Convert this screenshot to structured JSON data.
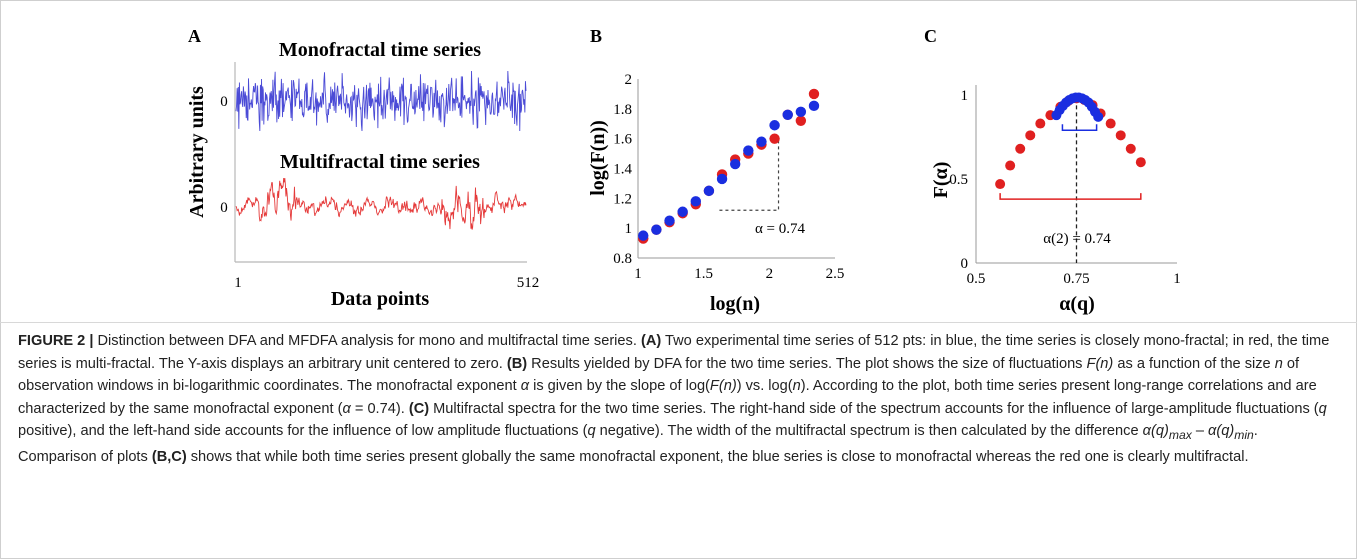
{
  "panels": {
    "A": {
      "letter": "A",
      "title_top": "Monofractal time series",
      "title_bottom": "Multifractal time series",
      "ylabel": "Arbitrary units",
      "xlabel": "Data points",
      "tick_zero_top": "0",
      "tick_zero_bottom": "0",
      "x_tick_start": "1",
      "x_tick_end": "512",
      "colors": {
        "mono": "#4b4bd6",
        "multi": "#e53a3a"
      }
    },
    "B": {
      "letter": "B",
      "xlabel": "log(n)",
      "ylabel": "log(F(n))",
      "annotation": "α = 0.74",
      "xticks": [
        "1",
        "1.5",
        "2",
        "2.5"
      ],
      "yticks": [
        "0.8",
        "1",
        "1.2",
        "1.4",
        "1.6",
        "1.8",
        "2"
      ]
    },
    "C": {
      "letter": "C",
      "xlabel": "α(q)",
      "ylabel": "F(α)",
      "annotation": "α(2) = 0.74",
      "xticks": [
        "0.5",
        "0.75",
        "1"
      ],
      "yticks": [
        "0",
        "0.5",
        "1"
      ]
    }
  },
  "chart_data": [
    {
      "type": "line",
      "panel": "A",
      "x_range": [
        1,
        512
      ],
      "series": [
        {
          "color": "#4b4bd6",
          "kind": "monofractal",
          "n_points": 512
        },
        {
          "color": "#e53a3a",
          "kind": "multifractal",
          "n_points": 512
        }
      ]
    },
    {
      "type": "scatter",
      "panel": "B",
      "xlim": [
        1,
        2.5
      ],
      "ylim": [
        0.8,
        2
      ],
      "series": [
        {
          "color": "#e02020",
          "x": [
            1.04,
            1.14,
            1.24,
            1.34,
            1.44,
            1.54,
            1.64,
            1.74,
            1.84,
            1.94,
            2.04,
            2.14,
            2.24,
            2.34
          ],
          "y": [
            0.93,
            0.99,
            1.04,
            1.1,
            1.16,
            1.25,
            1.36,
            1.46,
            1.5,
            1.56,
            1.6,
            1.76,
            1.72,
            1.9
          ]
        },
        {
          "color": "#1a2ee0",
          "x": [
            1.04,
            1.14,
            1.24,
            1.34,
            1.44,
            1.54,
            1.64,
            1.74,
            1.84,
            1.94,
            2.04,
            2.14,
            2.24,
            2.34
          ],
          "y": [
            0.95,
            0.99,
            1.05,
            1.11,
            1.18,
            1.25,
            1.33,
            1.43,
            1.52,
            1.58,
            1.69,
            1.76,
            1.78,
            1.82
          ]
        }
      ],
      "slope_guide": {
        "from": [
          1.62,
          1.12
        ],
        "corner": [
          2.07,
          1.12
        ],
        "to": [
          2.07,
          1.6
        ]
      }
    },
    {
      "type": "scatter",
      "panel": "C",
      "xlim": [
        0.5,
        1
      ],
      "ylim": [
        0,
        1.1
      ],
      "series": [
        {
          "color": "#e02020",
          "x": [
            0.56,
            0.585,
            0.61,
            0.635,
            0.66,
            0.685,
            0.71,
            0.73,
            0.75,
            0.77,
            0.79,
            0.81,
            0.835,
            0.86,
            0.885,
            0.91
          ],
          "y": [
            0.47,
            0.58,
            0.68,
            0.76,
            0.83,
            0.88,
            0.93,
            0.965,
            0.98,
            0.97,
            0.94,
            0.89,
            0.83,
            0.76,
            0.68,
            0.6
          ]
        },
        {
          "color": "#1a2ee0",
          "x": [
            0.7,
            0.708,
            0.716,
            0.724,
            0.732,
            0.74,
            0.748,
            0.756,
            0.764,
            0.772,
            0.78,
            0.788,
            0.796,
            0.804
          ],
          "y": [
            0.88,
            0.91,
            0.935,
            0.955,
            0.97,
            0.98,
            0.985,
            0.985,
            0.98,
            0.97,
            0.955,
            0.93,
            0.9,
            0.87
          ]
        }
      ],
      "width_brackets": [
        {
          "color": "#e02020",
          "x": [
            0.56,
            0.91
          ],
          "y": 0.38
        },
        {
          "color": "#1a2ee0",
          "x": [
            0.715,
            0.8
          ],
          "y": 0.79
        }
      ],
      "center_line_x": 0.75
    }
  ],
  "caption": {
    "label": "FIGURE 2 |",
    "parts": [
      {
        "t": " Distinction between DFA and MFDFA analysis for mono and multifractal time series. "
      },
      {
        "t": "(A)",
        "b": true
      },
      {
        "t": " Two experimental time series of 512 pts: in blue, the time series is closely mono-fractal; in red, the time series is multi-fractal. The Y-axis displays an arbitrary unit centered to zero. "
      },
      {
        "t": "(B)",
        "b": true
      },
      {
        "t": " Results yielded by DFA for the two time series. The plot shows the size of fluctuations "
      },
      {
        "t": "F(n)",
        "i": true
      },
      {
        "t": " as a function of the size "
      },
      {
        "t": "n",
        "i": true
      },
      {
        "t": " of observation windows in bi-logarithmic coordinates. The monofractal exponent "
      },
      {
        "t": "α",
        "i": true
      },
      {
        "t": " is given by the slope of log("
      },
      {
        "t": "F(n)",
        "i": true
      },
      {
        "t": ") vs. log("
      },
      {
        "t": "n",
        "i": true
      },
      {
        "t": "). According to the plot, both time series present long-range correlations and are characterized by the same monofractal exponent ("
      },
      {
        "t": "α",
        "i": true
      },
      {
        "t": " = 0.74). "
      },
      {
        "t": "(C)",
        "b": true
      },
      {
        "t": " Multifractal spectra for the two time series. The right-hand side of the spectrum accounts for the influence of large-amplitude fluctuations ("
      },
      {
        "t": "q",
        "i": true
      },
      {
        "t": " positive), and the left-hand side accounts for the influence of low amplitude fluctuations ("
      },
      {
        "t": "q",
        "i": true
      },
      {
        "t": " negative). The width of the multifractal spectrum is then calculated by the difference "
      },
      {
        "t": "α(q)",
        "i": true
      },
      {
        "t": "max",
        "i": true,
        "sub": true
      },
      {
        "t": " – "
      },
      {
        "t": "α(q)",
        "i": true
      },
      {
        "t": "min",
        "i": true,
        "sub": true
      },
      {
        "t": ". Comparison of plots "
      },
      {
        "t": "(B,C)",
        "b": true
      },
      {
        "t": " shows that while both time series present globally the same monofractal exponent, the blue series is close to monofractal whereas the red one is clearly multifractal."
      }
    ]
  }
}
